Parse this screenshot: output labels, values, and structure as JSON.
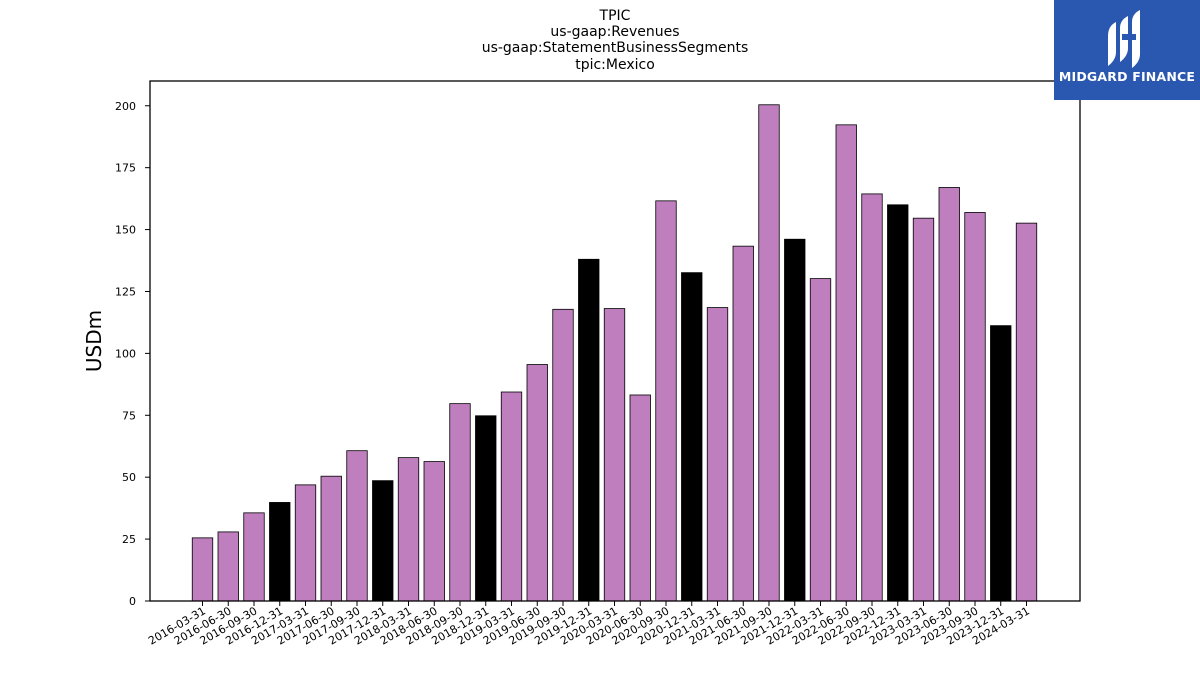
{
  "chart_data": {
    "type": "bar",
    "title_lines": [
      "TPIC",
      "us-gaap:Revenues",
      "us-gaap:StatementBusinessSegments",
      "tpic:Mexico"
    ],
    "ylabel": "USDm",
    "ylim": [
      0,
      210
    ],
    "yticks": [
      0,
      25,
      50,
      75,
      100,
      125,
      150,
      175,
      200
    ],
    "colors": {
      "default": "#bf7fbf",
      "q4": "#000000",
      "edge": "#000000"
    },
    "categories": [
      "2016-03-31",
      "2016-06-30",
      "2016-09-30",
      "2016-12-31",
      "2017-03-31",
      "2017-06-30",
      "2017-09-30",
      "2017-12-31",
      "2018-03-31",
      "2018-06-30",
      "2018-09-30",
      "2018-12-31",
      "2019-03-31",
      "2019-06-30",
      "2019-09-30",
      "2019-12-31",
      "2020-03-31",
      "2020-06-30",
      "2020-09-30",
      "2020-12-31",
      "2021-03-31",
      "2021-06-30",
      "2021-09-30",
      "2021-12-31",
      "2022-03-31",
      "2022-06-30",
      "2022-09-30",
      "2022-12-31",
      "2023-03-31",
      "2023-06-30",
      "2023-09-30",
      "2023-12-31",
      "2024-03-31"
    ],
    "values": [
      25.5,
      27.9,
      35.6,
      39.8,
      46.9,
      50.4,
      60.7,
      48.6,
      57.9,
      56.3,
      79.7,
      74.8,
      84.4,
      95.5,
      117.8,
      138.0,
      118.1,
      83.2,
      161.6,
      132.6,
      118.5,
      143.3,
      200.4,
      146.1,
      130.2,
      192.3,
      164.4,
      160.0,
      154.6,
      167.0,
      156.9,
      111.2,
      152.6
    ]
  },
  "logo": {
    "text": "MIDGARD FINANCE"
  }
}
